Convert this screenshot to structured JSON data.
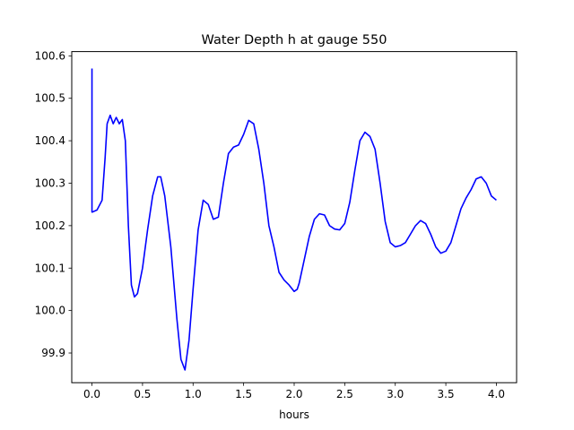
{
  "chart_data": {
    "type": "line",
    "title": "Water Depth h at gauge 550",
    "xlabel": "hours",
    "ylabel": "",
    "xlim": [
      -0.2,
      4.2
    ],
    "ylim": [
      99.83,
      100.61
    ],
    "x_ticks": [
      0.0,
      0.5,
      1.0,
      1.5,
      2.0,
      2.5,
      3.0,
      3.5,
      4.0
    ],
    "x_tick_labels": [
      "0.0",
      "0.5",
      "1.0",
      "1.5",
      "2.0",
      "2.5",
      "3.0",
      "3.5",
      "4.0"
    ],
    "y_ticks": [
      99.9,
      100.0,
      100.1,
      100.2,
      100.3,
      100.4,
      100.5,
      100.6
    ],
    "y_tick_labels": [
      "99.9",
      "100.0",
      "100.1",
      "100.2",
      "100.3",
      "100.4",
      "100.5",
      "100.6"
    ],
    "grid": false,
    "series": [
      {
        "color": "#0000ff",
        "x": [
          0.0,
          0.0,
          0.005,
          0.05,
          0.1,
          0.13,
          0.15,
          0.18,
          0.21,
          0.24,
          0.27,
          0.3,
          0.33,
          0.36,
          0.39,
          0.42,
          0.45,
          0.5,
          0.55,
          0.6,
          0.65,
          0.68,
          0.72,
          0.78,
          0.84,
          0.88,
          0.92,
          0.96,
          1.0,
          1.05,
          1.1,
          1.15,
          1.2,
          1.25,
          1.3,
          1.35,
          1.4,
          1.45,
          1.5,
          1.55,
          1.6,
          1.65,
          1.7,
          1.75,
          1.8,
          1.85,
          1.9,
          1.95,
          2.0,
          2.03,
          2.05,
          2.1,
          2.15,
          2.2,
          2.25,
          2.3,
          2.35,
          2.4,
          2.45,
          2.5,
          2.55,
          2.6,
          2.65,
          2.7,
          2.75,
          2.8,
          2.85,
          2.9,
          2.95,
          3.0,
          3.05,
          3.1,
          3.15,
          3.2,
          3.25,
          3.3,
          3.35,
          3.4,
          3.45,
          3.5,
          3.55,
          3.6,
          3.65,
          3.7,
          3.75,
          3.8,
          3.85,
          3.9,
          3.95,
          4.0
        ],
        "values": [
          100.57,
          100.232,
          100.232,
          100.237,
          100.26,
          100.36,
          100.44,
          100.46,
          100.44,
          100.455,
          100.44,
          100.45,
          100.4,
          100.2,
          100.06,
          100.032,
          100.04,
          100.1,
          100.19,
          100.27,
          100.315,
          100.315,
          100.27,
          100.15,
          99.98,
          99.885,
          99.86,
          99.93,
          100.05,
          100.19,
          100.26,
          100.25,
          100.215,
          100.22,
          100.3,
          100.37,
          100.385,
          100.39,
          100.415,
          100.448,
          100.44,
          100.38,
          100.3,
          100.2,
          100.15,
          100.09,
          100.072,
          100.06,
          100.045,
          100.05,
          100.065,
          100.12,
          100.175,
          100.215,
          100.228,
          100.225,
          100.2,
          100.192,
          100.19,
          100.205,
          100.255,
          100.33,
          100.4,
          100.42,
          100.41,
          100.38,
          100.3,
          100.21,
          100.16,
          100.15,
          100.153,
          100.16,
          100.18,
          100.2,
          100.212,
          100.205,
          100.18,
          100.15,
          100.135,
          100.14,
          100.16,
          100.2,
          100.24,
          100.265,
          100.285,
          100.31,
          100.315,
          100.3,
          100.27,
          100.26
        ]
      }
    ]
  }
}
